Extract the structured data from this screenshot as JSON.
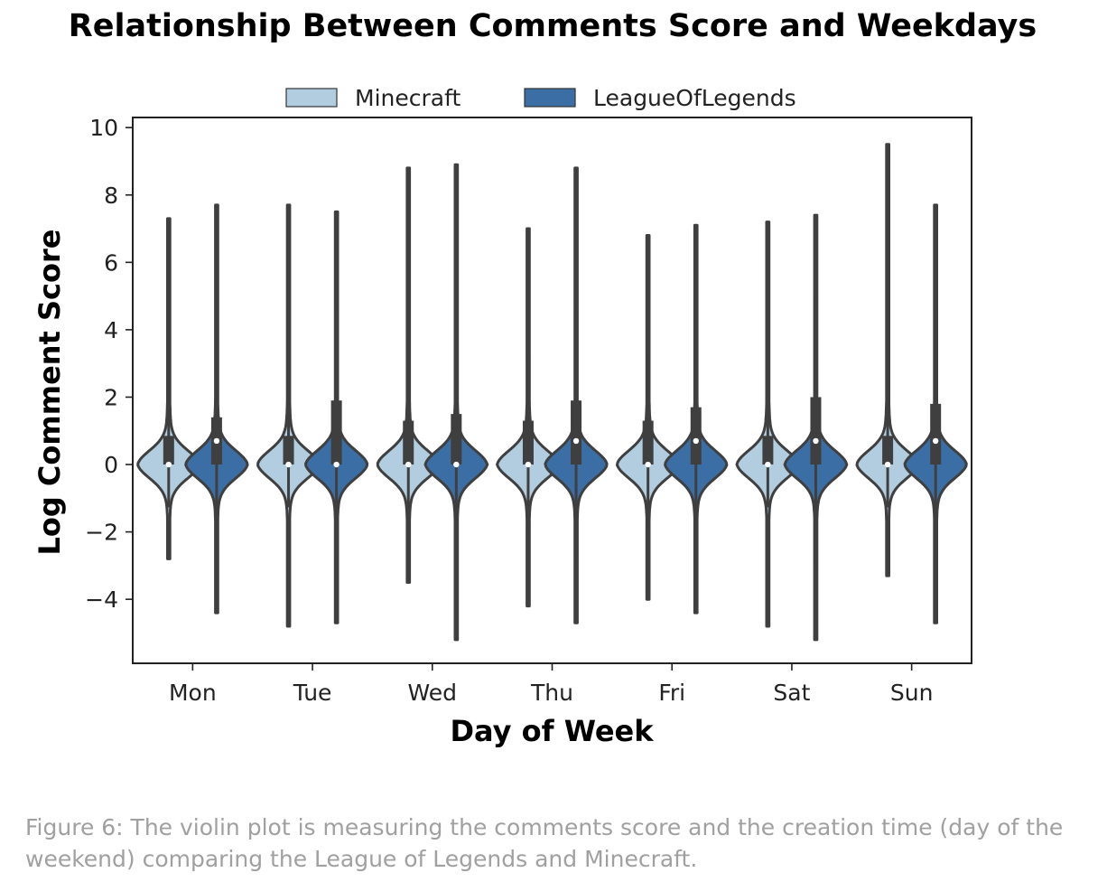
{
  "caption": "Figure 6: The violin plot is measuring the comments score and the creation time (day of the weekend) comparing the League of Legends and Minecraft.",
  "chart_data": {
    "type": "violin",
    "title": "Relationship Between Comments Score and Weekdays",
    "xlabel": "Day of Week",
    "ylabel": "Log Comment Score",
    "ylim": [
      -5.9,
      10.3
    ],
    "yticks": [
      -4,
      -2,
      0,
      2,
      4,
      6,
      8,
      10
    ],
    "ytick_labels": [
      "−4",
      "−2",
      "0",
      "2",
      "4",
      "6",
      "8",
      "10"
    ],
    "categories": [
      "Mon",
      "Tue",
      "Wed",
      "Thu",
      "Fri",
      "Sat",
      "Sun"
    ],
    "legend_position": "top-center",
    "grid": false,
    "series": [
      {
        "name": "Minecraft",
        "color": "#b3cde0",
        "min": [
          -2.8,
          -4.8,
          -3.5,
          -4.2,
          -4.0,
          -4.8,
          -3.3
        ],
        "max": [
          7.3,
          7.7,
          8.8,
          7.0,
          6.8,
          7.2,
          9.5
        ],
        "q1": [
          0,
          0,
          0,
          0,
          0,
          0,
          0
        ],
        "median": [
          0,
          0,
          0,
          0,
          0,
          0,
          0
        ],
        "q3": [
          0.85,
          0.85,
          1.3,
          1.3,
          1.3,
          0.85,
          0.85
        ]
      },
      {
        "name": "LeagueOfLegends",
        "color": "#3a6ea5",
        "min": [
          -4.4,
          -4.7,
          -5.2,
          -4.7,
          -4.4,
          -5.2,
          -4.7
        ],
        "max": [
          7.7,
          7.5,
          8.9,
          8.8,
          7.1,
          7.4,
          7.7
        ],
        "q1": [
          0,
          0,
          0,
          0,
          0,
          0,
          0
        ],
        "median": [
          0.7,
          0,
          0,
          0.7,
          0.7,
          0.7,
          0.7
        ],
        "q3": [
          1.4,
          1.9,
          1.5,
          1.9,
          1.7,
          2.0,
          1.8
        ]
      }
    ]
  }
}
